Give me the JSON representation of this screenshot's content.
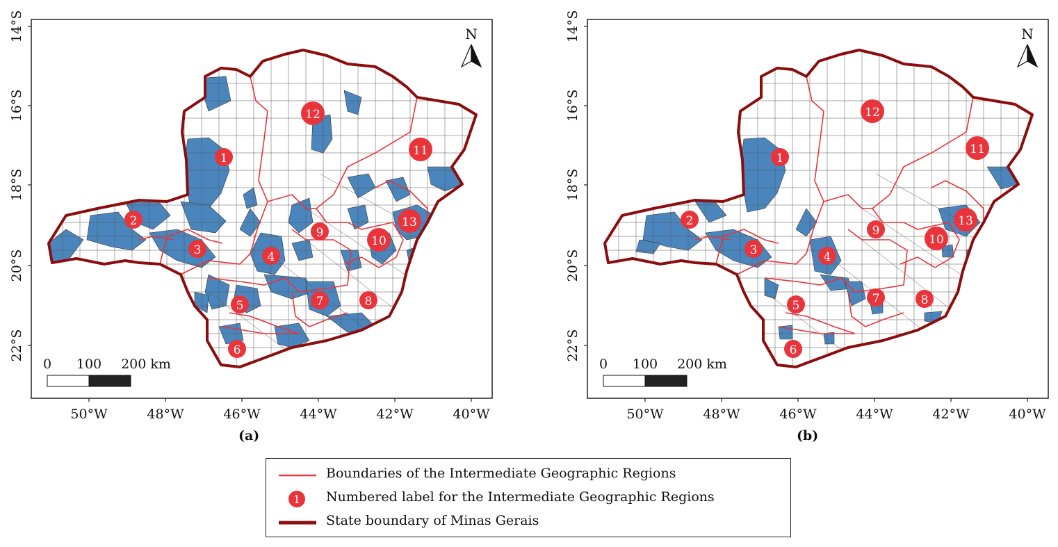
{
  "panels": [
    {
      "id": "a",
      "caption": "(a)",
      "lat_ticks": [
        "14°S",
        "16°S",
        "18°S",
        "20°S",
        "22°S"
      ],
      "lon_ticks": [
        "50°W",
        "48°W",
        "46°W",
        "44°W",
        "42°W",
        "40°W"
      ],
      "north_label": "N",
      "scale": {
        "labels": [
          "0",
          "100",
          "200 km"
        ]
      },
      "region_labels": [
        "1",
        "2",
        "3",
        "4",
        "5",
        "6",
        "7",
        "8",
        "9",
        "10",
        "11",
        "12",
        "13"
      ]
    },
    {
      "id": "b",
      "caption": "(b)",
      "lat_ticks": [
        "14°S",
        "16°S",
        "18°S",
        "20°S",
        "22°S"
      ],
      "lon_ticks": [
        "50°W",
        "48°W",
        "46°W",
        "44°W",
        "42°W",
        "40°W"
      ],
      "north_label": "N",
      "scale": {
        "labels": [
          "0",
          "100",
          "200 km"
        ]
      },
      "region_labels": [
        "1",
        "2",
        "3",
        "4",
        "5",
        "6",
        "7",
        "8",
        "9",
        "10",
        "11",
        "12",
        "13"
      ]
    }
  ],
  "legend": {
    "items": [
      {
        "label": "Boundaries of the Intermediate Geographic Regions",
        "symbol": "red-line"
      },
      {
        "label": "Numbered label for the Intermediate Geographic Regions",
        "symbol": "red-circle",
        "symbol_text": "1"
      },
      {
        "label": "State boundary of Minas Gerais",
        "symbol": "dark-red-thick-line"
      }
    ]
  },
  "colors": {
    "region_boundary": "#e8343a",
    "label_fill": "#e8343a",
    "state_boundary": "#8b0d0d",
    "highlight": "#4a86bd",
    "municipality_line": "#555555"
  }
}
